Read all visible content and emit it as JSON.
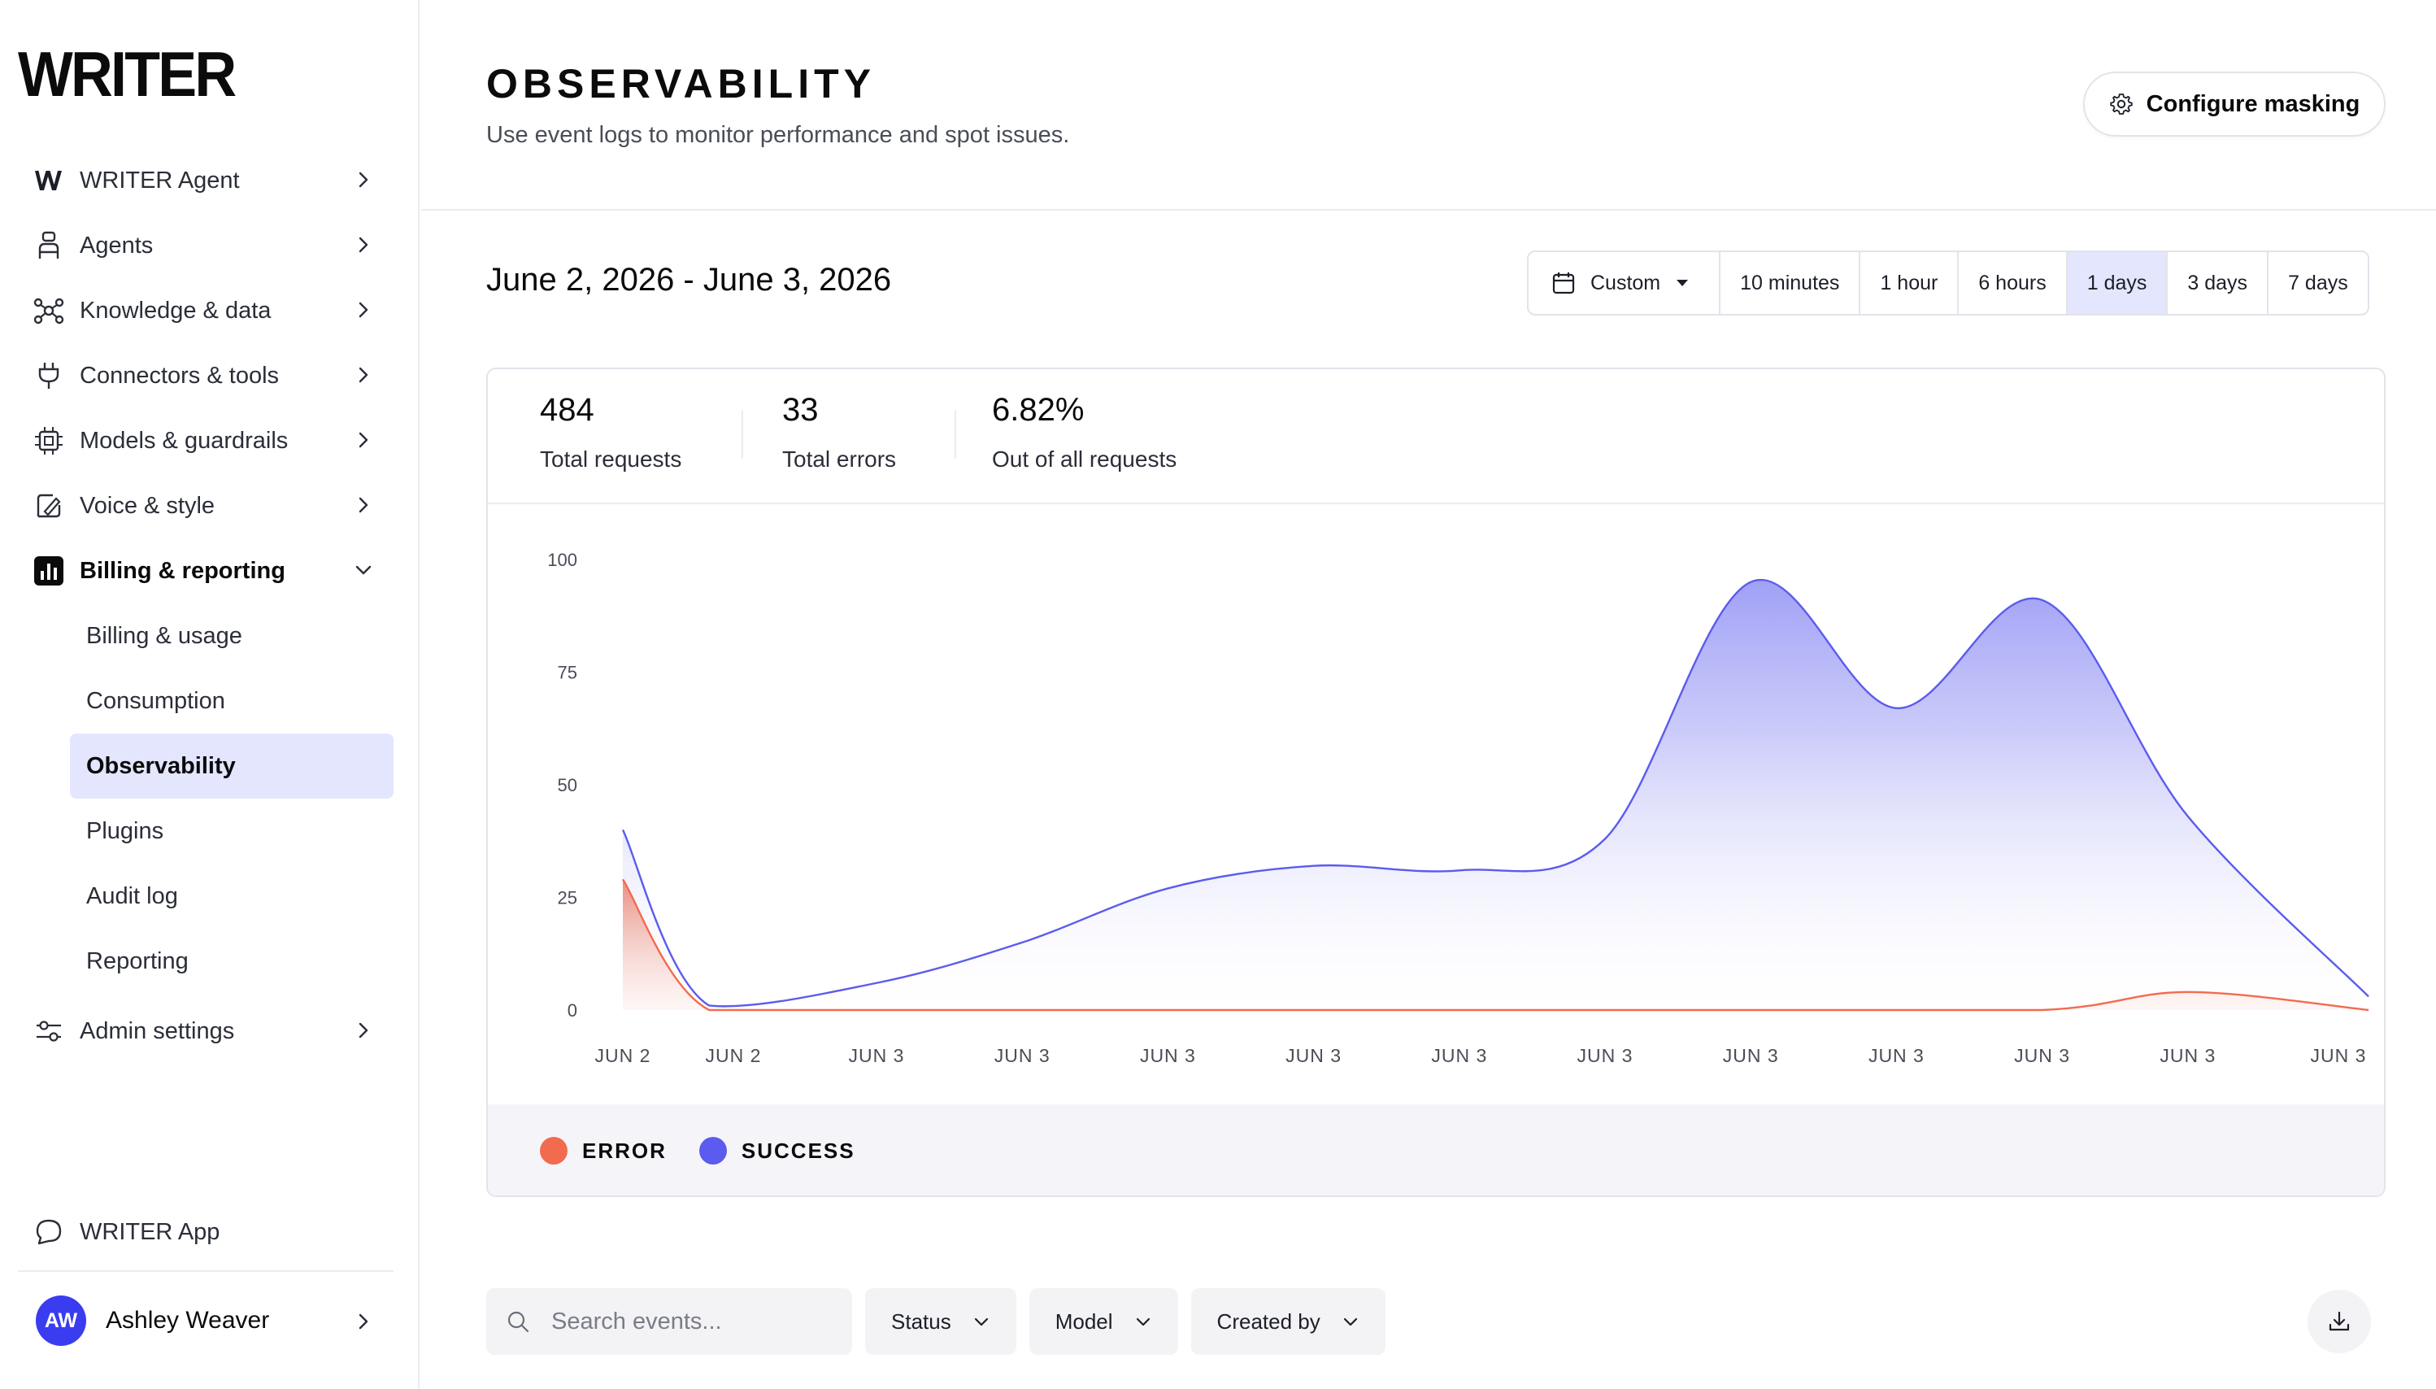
{
  "brand": {
    "logo_text": "WRITER"
  },
  "sidebar": {
    "items": [
      {
        "label": "WRITER Agent",
        "icon": "writer-w-icon"
      },
      {
        "label": "Agents",
        "icon": "agent-icon"
      },
      {
        "label": "Knowledge & data",
        "icon": "knowledge-graph-icon"
      },
      {
        "label": "Connectors & tools",
        "icon": "plug-icon"
      },
      {
        "label": "Models & guardrails",
        "icon": "chip-icon"
      },
      {
        "label": "Voice & style",
        "icon": "voice-style-icon"
      },
      {
        "label": "Billing & reporting",
        "icon": "bar-chart-icon"
      }
    ],
    "sub_items": [
      {
        "label": "Billing & usage"
      },
      {
        "label": "Consumption"
      },
      {
        "label": "Observability"
      },
      {
        "label": "Plugins"
      },
      {
        "label": "Audit log"
      },
      {
        "label": "Reporting"
      }
    ],
    "admin": {
      "label": "Admin settings",
      "icon": "sliders-icon"
    },
    "app_link": {
      "label": "WRITER App",
      "icon": "chat-bubble-icon"
    },
    "user": {
      "initials": "AW",
      "name": "Ashley Weaver"
    }
  },
  "header": {
    "title": "OBSERVABILITY",
    "subtitle": "Use event logs to monitor performance and spot issues.",
    "configure_label": "Configure masking"
  },
  "date_range": {
    "label": "June 2, 2026 - June 3, 2026",
    "custom_label": "Custom",
    "options": [
      "10 minutes",
      "1 hour",
      "6 hours",
      "1 days",
      "3 days",
      "7 days"
    ],
    "active": "1 days"
  },
  "stats": [
    {
      "value": "484",
      "label": "Total requests"
    },
    {
      "value": "33",
      "label": "Total errors"
    },
    {
      "value": "6.82%",
      "label": "Out of all requests"
    }
  ],
  "chart_data": {
    "type": "area",
    "title": "",
    "xlabel": "",
    "ylabel": "",
    "x": [
      "JUN 2",
      "JUN 2",
      "JUN 3",
      "JUN 3",
      "JUN 3",
      "JUN 3",
      "JUN 3",
      "JUN 3",
      "JUN 3",
      "JUN 3",
      "JUN 3",
      "JUN 3",
      "JUN 3"
    ],
    "yticks": [
      0,
      25,
      50,
      75,
      100
    ],
    "ylim": [
      0,
      100
    ],
    "grid": false,
    "legend": "bottom-left",
    "series": [
      {
        "name": "ERROR",
        "color": "#f26b4f",
        "points": [
          [
            0,
            29
          ],
          [
            0.78,
            0
          ],
          [
            2,
            0
          ],
          [
            4,
            0
          ],
          [
            6,
            0
          ],
          [
            8,
            0
          ],
          [
            10,
            0
          ],
          [
            11,
            4
          ],
          [
            12.2,
            0
          ]
        ]
      },
      {
        "name": "SUCCESS",
        "color": "#5b5bef",
        "points": [
          [
            0,
            40
          ],
          [
            0.78,
            1
          ],
          [
            2,
            6
          ],
          [
            3,
            15
          ],
          [
            4,
            27
          ],
          [
            5,
            32
          ],
          [
            6,
            31
          ],
          [
            7,
            38
          ],
          [
            8,
            95
          ],
          [
            9,
            67
          ],
          [
            10,
            91
          ],
          [
            11,
            43
          ],
          [
            12.2,
            3
          ]
        ]
      }
    ]
  },
  "legend": {
    "items": [
      {
        "label": "ERROR",
        "color": "#f26b4f"
      },
      {
        "label": "SUCCESS",
        "color": "#5b5bef"
      }
    ]
  },
  "filters": {
    "search_placeholder": "Search events...",
    "buttons": [
      "Status",
      "Model",
      "Created by"
    ],
    "download_icon": "download-icon"
  }
}
